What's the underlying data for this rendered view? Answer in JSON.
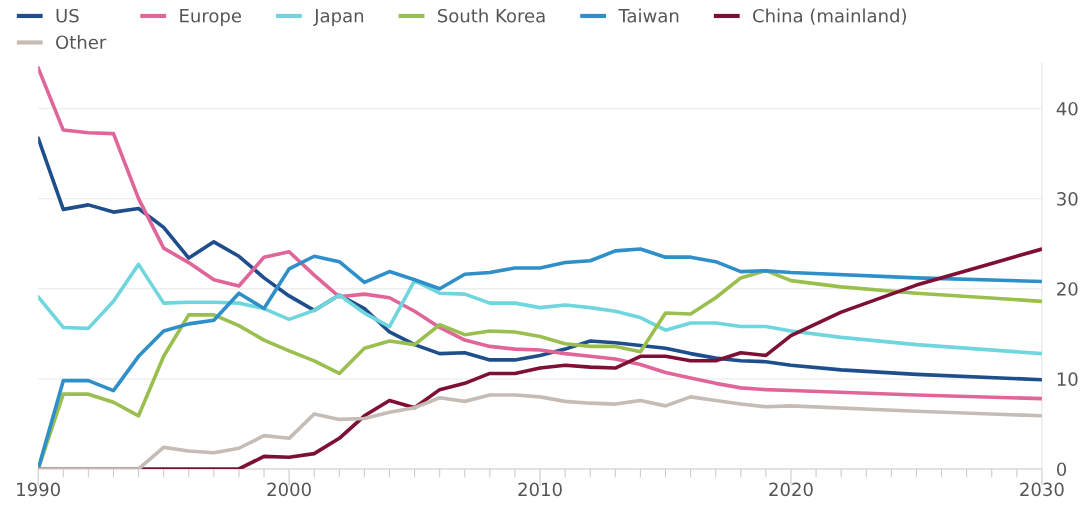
{
  "chart_data": {
    "type": "line",
    "legend": "top left",
    "grid": "y",
    "marker": "none",
    "line_style": "solid",
    "xlim": [
      1990,
      2030
    ],
    "ylim": [
      0,
      45
    ],
    "yticks": [
      0,
      10,
      20,
      30,
      40
    ],
    "xticks": [
      1990,
      {
        "value": 1991,
        "label": null
      },
      {
        "value": 1992,
        "label": null
      },
      {
        "value": 1993,
        "label": null
      },
      {
        "value": 1994,
        "label": null
      },
      {
        "value": 1995,
        "label": null
      },
      {
        "value": 1996,
        "label": null
      },
      {
        "value": 1997,
        "label": null
      },
      {
        "value": 1998,
        "label": null
      },
      {
        "value": 1999,
        "label": null
      },
      2000,
      {
        "value": 2001,
        "label": null
      },
      {
        "value": 2002,
        "label": null
      },
      {
        "value": 2003,
        "label": null
      },
      {
        "value": 2004,
        "label": null
      },
      {
        "value": 2005,
        "label": null
      },
      {
        "value": 2006,
        "label": null
      },
      {
        "value": 2007,
        "label": null
      },
      {
        "value": 2008,
        "label": null
      },
      {
        "value": 2009,
        "label": null
      },
      2010,
      {
        "value": 2011,
        "label": null
      },
      {
        "value": 2012,
        "label": null
      },
      {
        "value": 2013,
        "label": null
      },
      {
        "value": 2014,
        "label": null
      },
      {
        "value": 2015,
        "label": null
      },
      {
        "value": 2016,
        "label": null
      },
      {
        "value": 2017,
        "label": null
      },
      {
        "value": 2018,
        "label": null
      },
      {
        "value": 2019,
        "label": null
      },
      2020,
      {
        "value": 2021,
        "label": null
      },
      {
        "value": 2022,
        "label": null
      },
      {
        "value": 2023,
        "label": null
      },
      {
        "value": 2024,
        "label": null
      },
      {
        "value": 2025,
        "label": null
      },
      {
        "value": 2026,
        "label": null
      },
      {
        "value": 2027,
        "label": null
      },
      {
        "value": 2028,
        "label": null
      },
      {
        "value": 2029,
        "label": null
      },
      2030
    ],
    "series": [
      {
        "name": "US",
        "color": "#1f4e8c",
        "x": [
          1990,
          1991,
          1992,
          1993,
          1994,
          1995,
          1996,
          1997,
          1998,
          1999,
          2000,
          2001,
          2002,
          2003,
          2004,
          2005,
          2006,
          2007,
          2008,
          2009,
          2010,
          2011,
          2012,
          2013,
          2014,
          2015,
          2016,
          2017,
          2018,
          2019,
          2020,
          2022,
          2025,
          2030
        ],
        "values": [
          36.7,
          28.8,
          29.3,
          28.5,
          28.9,
          26.8,
          23.4,
          25.2,
          23.6,
          21.2,
          19.2,
          17.6,
          19.3,
          17.8,
          15.2,
          13.8,
          12.8,
          12.9,
          12.1,
          12.1,
          12.6,
          13.3,
          14.2,
          14.0,
          13.7,
          13.4,
          12.8,
          12.3,
          12.0,
          11.9,
          11.5,
          11.0,
          10.5,
          9.9
        ]
      },
      {
        "name": "Europe",
        "color": "#e0669a",
        "x": [
          1990,
          1991,
          1992,
          1993,
          1994,
          1995,
          1996,
          1997,
          1998,
          1999,
          2000,
          2001,
          2002,
          2003,
          2004,
          2005,
          2006,
          2007,
          2008,
          2009,
          2010,
          2011,
          2012,
          2013,
          2014,
          2015,
          2016,
          2017,
          2018,
          2019,
          2020,
          2025,
          2030
        ],
        "values": [
          44.5,
          37.6,
          37.3,
          37.2,
          30.0,
          24.5,
          22.9,
          21.0,
          20.3,
          23.5,
          24.1,
          21.5,
          19.1,
          19.4,
          19.0,
          17.5,
          15.7,
          14.3,
          13.6,
          13.3,
          13.2,
          12.8,
          12.5,
          12.2,
          11.6,
          10.7,
          10.1,
          9.5,
          9.0,
          8.8,
          8.7,
          8.2,
          7.8
        ]
      },
      {
        "name": "Japan",
        "color": "#6fd6dd",
        "x": [
          1990,
          1991,
          1992,
          1993,
          1994,
          1995,
          1996,
          1997,
          1998,
          1999,
          2000,
          2001,
          2002,
          2003,
          2004,
          2005,
          2006,
          2007,
          2008,
          2009,
          2010,
          2011,
          2012,
          2013,
          2014,
          2015,
          2016,
          2017,
          2018,
          2019,
          2020,
          2022,
          2025,
          2030
        ],
        "values": [
          19.1,
          15.7,
          15.6,
          18.6,
          22.7,
          18.4,
          18.5,
          18.5,
          18.4,
          17.8,
          16.6,
          17.6,
          19.3,
          17.3,
          15.8,
          20.9,
          19.5,
          19.4,
          18.4,
          18.4,
          17.9,
          18.2,
          17.9,
          17.5,
          16.8,
          15.4,
          16.2,
          16.2,
          15.8,
          15.8,
          15.3,
          14.6,
          13.8,
          12.8
        ]
      },
      {
        "name": "South Korea",
        "color": "#9bbf4f",
        "x": [
          1990,
          1991,
          1992,
          1993,
          1994,
          1995,
          1996,
          1997,
          1998,
          1999,
          2000,
          2001,
          2002,
          2003,
          2004,
          2005,
          2006,
          2007,
          2008,
          2009,
          2010,
          2011,
          2012,
          2013,
          2014,
          2015,
          2016,
          2017,
          2018,
          2019,
          2020,
          2022,
          2025,
          2030
        ],
        "values": [
          0,
          8.3,
          8.3,
          7.4,
          5.9,
          12.5,
          17.1,
          17.1,
          15.9,
          14.3,
          13.1,
          12.0,
          10.6,
          13.4,
          14.2,
          13.8,
          16.0,
          14.9,
          15.3,
          15.2,
          14.7,
          13.9,
          13.6,
          13.6,
          13.0,
          17.3,
          17.2,
          19.0,
          21.2,
          22.0,
          20.9,
          20.2,
          19.5,
          18.6
        ]
      },
      {
        "name": "Taiwan",
        "color": "#2e8fc9",
        "x": [
          1990,
          1991,
          1992,
          1993,
          1994,
          1995,
          1996,
          1997,
          1998,
          1999,
          2000,
          2001,
          2002,
          2003,
          2004,
          2005,
          2006,
          2007,
          2008,
          2009,
          2010,
          2011,
          2012,
          2013,
          2014,
          2015,
          2016,
          2017,
          2018,
          2019,
          2020,
          2025,
          2030
        ],
        "values": [
          0,
          9.8,
          9.8,
          8.7,
          12.5,
          15.3,
          16.1,
          16.5,
          19.5,
          17.8,
          22.2,
          23.6,
          23.0,
          20.7,
          21.9,
          21.0,
          20.0,
          21.6,
          21.8,
          22.3,
          22.3,
          22.9,
          23.1,
          24.2,
          24.4,
          23.5,
          23.5,
          23.0,
          21.9,
          22.0,
          21.8,
          21.2,
          20.8
        ]
      },
      {
        "name": "China (mainland)",
        "color": "#7d1034",
        "x": [
          1990,
          1998,
          1999,
          2000,
          2001,
          2002,
          2003,
          2004,
          2005,
          2006,
          2007,
          2008,
          2009,
          2010,
          2011,
          2012,
          2013,
          2014,
          2015,
          2016,
          2017,
          2018,
          2019,
          2020,
          2022,
          2025,
          2028,
          2030
        ],
        "values": [
          0,
          0,
          1.4,
          1.3,
          1.7,
          3.4,
          5.9,
          7.6,
          6.8,
          8.8,
          9.5,
          10.6,
          10.6,
          11.2,
          11.5,
          11.3,
          11.2,
          12.5,
          12.5,
          12.0,
          12.0,
          12.9,
          12.6,
          14.8,
          17.4,
          20.4,
          22.8,
          24.4
        ]
      },
      {
        "name": "Other",
        "color": "#c6bcb6",
        "x": [
          1990,
          1994,
          1995,
          1996,
          1997,
          1998,
          1999,
          2000,
          2001,
          2002,
          2003,
          2004,
          2005,
          2006,
          2007,
          2008,
          2009,
          2010,
          2011,
          2012,
          2013,
          2014,
          2015,
          2016,
          2017,
          2018,
          2019,
          2020,
          2025,
          2030
        ],
        "values": [
          0,
          0,
          2.4,
          2.0,
          1.8,
          2.3,
          3.7,
          3.4,
          6.1,
          5.5,
          5.6,
          6.3,
          6.8,
          7.9,
          7.5,
          8.2,
          8.2,
          8.0,
          7.5,
          7.3,
          7.2,
          7.6,
          7.0,
          8.0,
          7.6,
          7.2,
          6.9,
          7.0,
          6.4,
          5.9
        ]
      }
    ]
  }
}
